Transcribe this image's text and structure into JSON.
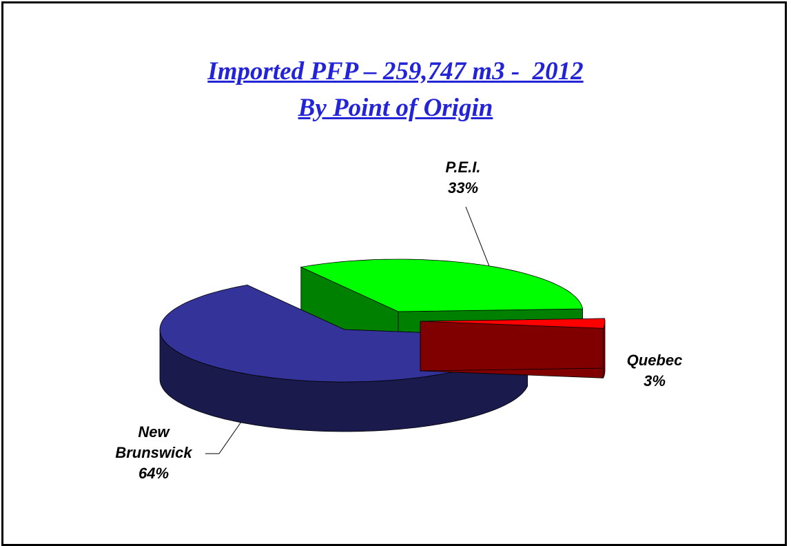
{
  "chart_data": {
    "type": "pie3d",
    "title": "Imported PFP – 259,747 m3 -  2012",
    "subtitle": "By Point of Origin",
    "categories": [
      "P.E.I.",
      "New Brunswick",
      "Quebec"
    ],
    "values": [
      33,
      64,
      3
    ],
    "value_labels": [
      "33%",
      "64%",
      "3%"
    ],
    "colors": [
      "#00ff00",
      "#333399",
      "#ff0000"
    ]
  }
}
